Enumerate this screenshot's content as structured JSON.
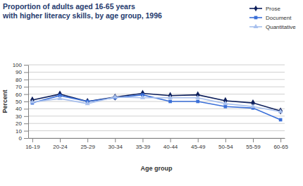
{
  "chart_data": {
    "type": "line",
    "title": [
      "Proportion of adults aged 16-65 years",
      "with higher literacy skills, by age group, 1996"
    ],
    "x_label": "Age group",
    "y_label": "Percent",
    "categories": [
      "16-19",
      "20-24",
      "25-29",
      "30-34",
      "35-39",
      "40-44",
      "45-49",
      "50-54",
      "55-59",
      "60-65"
    ],
    "series": [
      {
        "name": "Prose",
        "color": "#0d1f5c",
        "marker": "diamond",
        "values": [
          52,
          60,
          50,
          56,
          61,
          58,
          59,
          51,
          48,
          37
        ]
      },
      {
        "name": "Document",
        "color": "#3a6fd8",
        "marker": "square",
        "values": [
          48,
          58,
          50,
          55,
          59,
          50,
          50,
          43,
          41,
          25
        ]
      },
      {
        "name": "Quantitative",
        "color": "#a8c0ee",
        "marker": "triangle",
        "values": [
          49,
          54,
          47,
          56,
          55,
          55,
          55,
          47,
          43,
          36
        ]
      }
    ],
    "ylim": [
      0,
      100
    ],
    "yticks": [
      0,
      10,
      20,
      30,
      40,
      50,
      60,
      70,
      80,
      90,
      100
    ],
    "grid": true,
    "legend": "top-right"
  }
}
